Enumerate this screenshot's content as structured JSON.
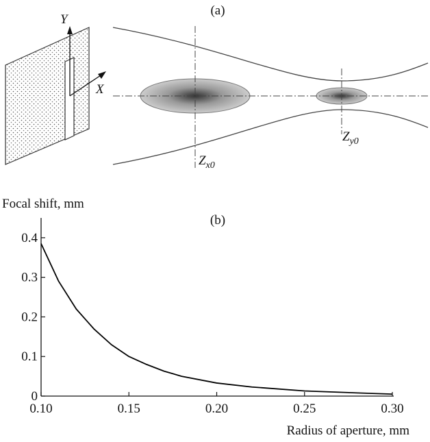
{
  "diagram": {
    "label": "(a)",
    "axis_y": "Y",
    "axis_x": "X",
    "focus_x": {
      "main": "Z",
      "sub": "x0"
    },
    "focus_y": {
      "main": "Z",
      "sub": "y0"
    }
  },
  "chart_data": {
    "type": "line",
    "label": "(b)",
    "y_label": "Focal shift, mm",
    "x_label": "Radius of aperture, mm",
    "x": [
      0.1,
      0.11,
      0.12,
      0.13,
      0.14,
      0.15,
      0.16,
      0.17,
      0.18,
      0.2,
      0.22,
      0.25,
      0.28,
      0.3
    ],
    "values": [
      0.385,
      0.29,
      0.22,
      0.17,
      0.13,
      0.1,
      0.08,
      0.063,
      0.05,
      0.033,
      0.023,
      0.013,
      0.008,
      0.005
    ],
    "color": "#000000",
    "xlim": [
      0.1,
      0.3
    ],
    "ylim": [
      0,
      0.45
    ],
    "xticks": [
      {
        "value": 0.1,
        "label": "0.10"
      },
      0.15,
      {
        "value": 0.2,
        "label": "0.20"
      },
      0.25,
      {
        "value": 0.3,
        "label": "0.30"
      }
    ],
    "yticks": [
      0,
      0.1,
      0.2,
      0.3,
      0.4
    ]
  }
}
